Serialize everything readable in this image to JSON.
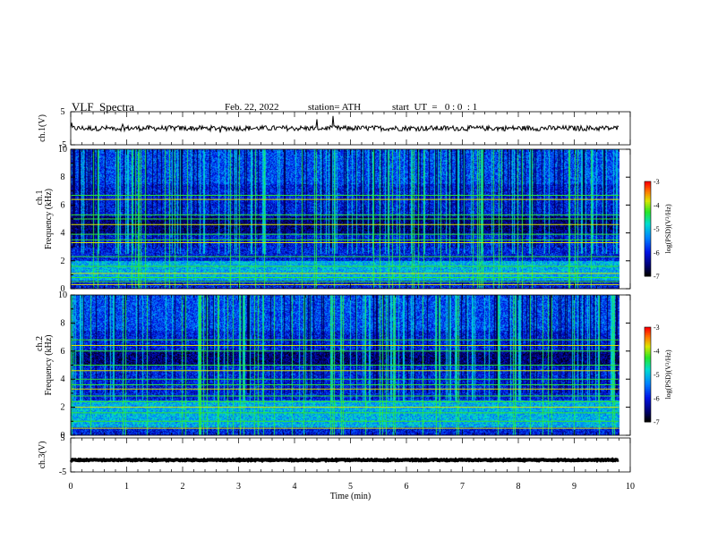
{
  "header": {
    "title": "VLF  Spectra",
    "date": "Feb. 22, 2022",
    "station": "station= ATH",
    "start": "start  UT  =   0 : 0  : 1"
  },
  "chart_data": {
    "type": "heatmap",
    "time_axis": {
      "label": "Time  (min)",
      "range": [
        0,
        10
      ],
      "ticks": [
        "0",
        "1",
        "2",
        "3",
        "4",
        "5",
        "6",
        "7",
        "8",
        "9",
        "10"
      ],
      "data_end_min": 9.8
    },
    "panels": [
      {
        "kind": "waveform",
        "ylabel": "ch.1(V)",
        "yticks": [
          "5",
          "-5"
        ],
        "ylim": [
          -5,
          5
        ],
        "trace_level_v": 0,
        "trace_noise_v": 0.8
      },
      {
        "kind": "spectrogram",
        "ylabel_top": "ch.1",
        "ylabel_bottom": "Frequency  (kHz)",
        "yticks": [
          "10",
          "8",
          "6",
          "4",
          "2",
          "0"
        ],
        "ylim": [
          0,
          10
        ],
        "colorbar": {
          "label": "log(PSD)(V²/Hz)",
          "range": [
            -7,
            -3
          ],
          "ticks": [
            "-3",
            "-4",
            "-5",
            "-6",
            "-7"
          ]
        },
        "tonal_lines_khz": [
          0.3,
          0.5,
          0.8,
          1.1,
          1.6,
          2.3,
          3.3,
          3.5,
          3.9,
          4.6,
          5.0,
          5.3,
          6.4,
          6.7
        ],
        "dark_band_khz": [
          4.0,
          5.2
        ],
        "enhanced_band_khz": [
          0.6,
          2.0
        ]
      },
      {
        "kind": "spectrogram",
        "ylabel_top": "ch.2",
        "ylabel_bottom": "Frequency  (kHz)",
        "yticks": [
          "10",
          "8",
          "6",
          "4",
          "2",
          "0"
        ],
        "ylim": [
          0,
          10
        ],
        "colorbar": {
          "label": "log(PSD)(V²/Hz)",
          "range": [
            -7,
            -3
          ],
          "ticks": [
            "-3",
            "-4",
            "-5",
            "-6",
            "-7"
          ]
        },
        "tonal_lines_khz": [
          0.5,
          1.0,
          1.6,
          2.0,
          2.4,
          2.8,
          3.3,
          3.6,
          4.0,
          4.6,
          5.0,
          6.0,
          6.4,
          6.8
        ],
        "dark_band_khz": [
          5.0,
          6.0
        ],
        "enhanced_band_khz": [
          0.6,
          2.5
        ]
      },
      {
        "kind": "waveform",
        "ylabel": "ch.3(V)",
        "yticks": [
          "5",
          "-5"
        ],
        "ylim": [
          -5,
          5
        ],
        "trace_level_v": -1.5,
        "trace_noise_v": 0.15
      }
    ]
  }
}
